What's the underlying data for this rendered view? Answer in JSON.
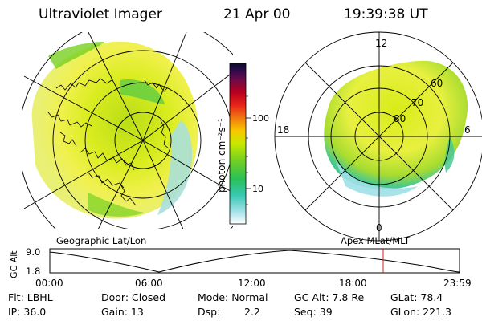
{
  "header": {
    "title": "Ultraviolet Imager",
    "date": "21 Apr 00",
    "time": "19:39:38 UT"
  },
  "colorbar": {
    "label": "photon cm⁻²s⁻¹",
    "ticks": [
      "100",
      "10"
    ],
    "colors": [
      "#0a0a26",
      "#2b0a4a",
      "#6a0a4a",
      "#b8001e",
      "#e8241a",
      "#f07a10",
      "#f8c800",
      "#c8e800",
      "#78d020",
      "#28c058",
      "#38c8b0",
      "#a0e0e8",
      "#ffffff"
    ]
  },
  "left_map": {
    "label": "Geographic Lat/Lon"
  },
  "right_map": {
    "label": "Apex MLat/MLT",
    "mlt_labels": {
      "top": "12",
      "left": "18",
      "right": "6",
      "bottom": "0"
    },
    "lat_labels": [
      "60",
      "70",
      "80"
    ]
  },
  "altitude_plot": {
    "ylabel": "GC Alt",
    "y_ticks": [
      "9.0",
      "1.8"
    ],
    "x_ticks": [
      "00:00",
      "06:00",
      "12:00",
      "18:00",
      "23:59"
    ],
    "marker_time": "19:39",
    "marker_color": "#d02020"
  },
  "info": {
    "row1": {
      "filter": "Flt: LBHL",
      "door": "Door: Closed",
      "mode": "Mode: Normal",
      "gc_alt": "GC Alt: 7.8 Re",
      "glat": "GLat: 78.4"
    },
    "row2": {
      "ip": "IP: 36.0",
      "gain": "Gain: 13",
      "dsp_label": "Dsp:",
      "dsp_value": "2.2",
      "seq": "Seq: 39",
      "glon": "GLon: 221.3"
    }
  }
}
